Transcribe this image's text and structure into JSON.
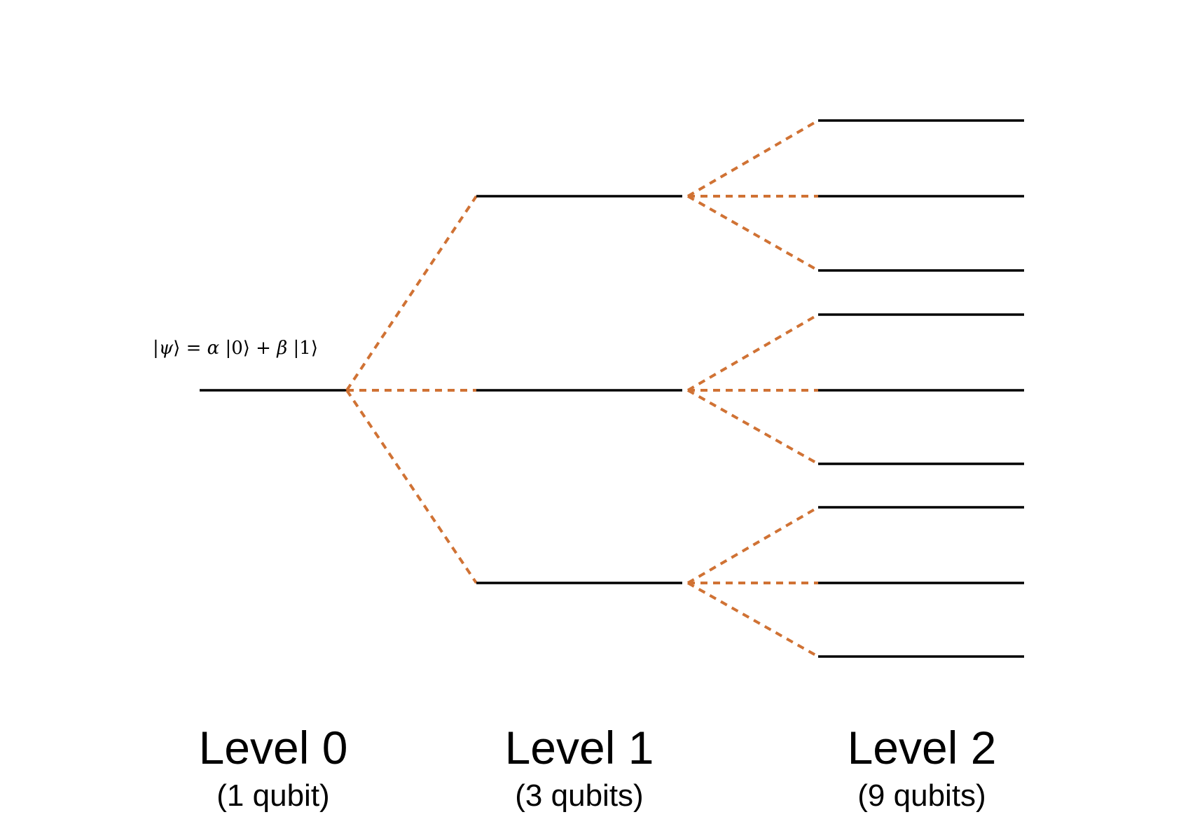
{
  "state": {
    "ket_open": "|",
    "psi": "ψ",
    "ket_close": "⟩",
    "equals": " = ",
    "alpha": "α",
    "ket0": " |0⟩",
    "plus": " + ",
    "beta": "β",
    "ket1": " |1⟩"
  },
  "levels": [
    {
      "name": "Level 0",
      "subtitle": "(1 qubit)",
      "qubits": 1
    },
    {
      "name": "Level 1",
      "subtitle": "(3 qubits)",
      "qubits": 3
    },
    {
      "name": "Level 2",
      "subtitle": "(9 qubits)",
      "qubits": 9
    }
  ],
  "colors": {
    "qubit_line": "#000000",
    "branch": "#D07234",
    "background": "#ffffff"
  }
}
